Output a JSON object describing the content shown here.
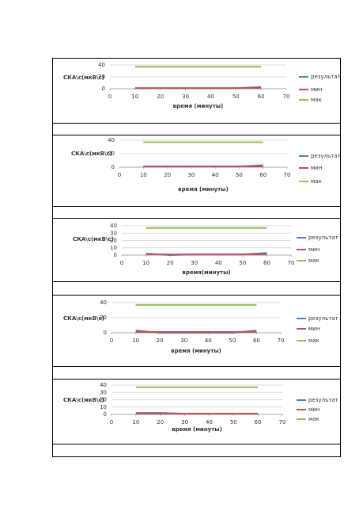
{
  "chart_data": [
    {
      "type": "line",
      "y_label": "СКА\\с(мкВ\\с)",
      "x_label": "время (минуты)",
      "x": [
        10,
        20,
        30,
        40,
        50,
        60
      ],
      "xlim": [
        0,
        70
      ],
      "xticks": [
        0,
        10,
        20,
        30,
        40,
        50,
        60,
        70
      ],
      "ylim": [
        0,
        40
      ],
      "yticks": [
        0,
        20,
        40
      ],
      "grid": true,
      "series": [
        {
          "name": "результат",
          "color": "#4f81bd",
          "values": [
            1,
            1,
            1,
            1,
            1,
            3
          ]
        },
        {
          "name": "мин",
          "color": "#c0504d",
          "values": [
            1,
            1,
            1,
            1,
            1,
            1
          ]
        },
        {
          "name": "мак",
          "color": "#9bbb59",
          "values": [
            37,
            37,
            37,
            37,
            37,
            37
          ]
        }
      ]
    },
    {
      "type": "line",
      "y_label": "СКА\\с(мкВ\\с)",
      "x_label": "время (минуты)",
      "x": [
        10,
        20,
        30,
        40,
        50,
        60
      ],
      "xlim": [
        0,
        70
      ],
      "xticks": [
        0,
        10,
        20,
        30,
        40,
        50,
        60,
        70
      ],
      "ylim": [
        0,
        40
      ],
      "yticks": [
        0,
        20,
        40
      ],
      "grid": true,
      "series": [
        {
          "name": "результат",
          "color": "#4f81bd",
          "values": [
            1,
            1,
            1,
            1,
            1,
            3
          ]
        },
        {
          "name": "мин",
          "color": "#c0504d",
          "values": [
            1,
            1,
            1,
            1,
            1,
            1
          ]
        },
        {
          "name": "мак",
          "color": "#9bbb59",
          "values": [
            37,
            37,
            37,
            37,
            37,
            37
          ]
        }
      ]
    },
    {
      "type": "line",
      "y_label": "СКА\\с(мкВ\\с)",
      "x_label": "время(минуты)",
      "x": [
        10,
        20,
        30,
        40,
        50,
        60
      ],
      "xlim": [
        0,
        70
      ],
      "xticks": [
        0,
        10,
        20,
        30,
        40,
        50,
        60,
        70
      ],
      "ylim": [
        0,
        40
      ],
      "yticks": [
        0,
        10,
        20,
        30,
        40
      ],
      "grid": true,
      "series": [
        {
          "name": "результат",
          "color": "#4f81bd",
          "values": [
            2,
            0,
            1,
            1,
            1,
            3
          ]
        },
        {
          "name": "мин",
          "color": "#c0504d",
          "values": [
            1,
            1,
            1,
            1,
            1,
            1
          ]
        },
        {
          "name": "мак",
          "color": "#9bbb59",
          "values": [
            37,
            37,
            37,
            37,
            37,
            37
          ]
        }
      ]
    },
    {
      "type": "line",
      "y_label": "СКА\\с(мкВ\\с)",
      "x_label": "время (минуты)",
      "x": [
        10,
        20,
        30,
        40,
        50,
        60
      ],
      "xlim": [
        0,
        70
      ],
      "xticks": [
        0,
        10,
        20,
        30,
        40,
        50,
        60,
        70
      ],
      "ylim": [
        0,
        40
      ],
      "yticks": [
        0,
        20,
        40
      ],
      "grid": true,
      "series": [
        {
          "name": "результат",
          "color": "#4f81bd",
          "values": [
            3,
            0,
            0,
            0,
            0,
            3
          ]
        },
        {
          "name": "мин",
          "color": "#c0504d",
          "values": [
            1,
            1,
            1,
            1,
            1,
            1
          ]
        },
        {
          "name": "мак",
          "color": "#9bbb59",
          "values": [
            37,
            37,
            37,
            37,
            37,
            37
          ]
        }
      ]
    },
    {
      "type": "line",
      "y_label": "СКА\\с(мкВ\\с)",
      "x_label": "время (минуты)",
      "x": [
        10,
        20,
        30,
        40,
        50,
        60
      ],
      "xlim": [
        0,
        70
      ],
      "xticks": [
        0,
        10,
        20,
        30,
        40,
        50,
        60,
        70
      ],
      "ylim": [
        0,
        40
      ],
      "yticks": [
        0,
        10,
        20,
        30,
        40
      ],
      "grid": true,
      "series": [
        {
          "name": "результат",
          "color": "#4f81bd",
          "values": [
            2,
            2,
            1,
            1,
            1,
            1
          ]
        },
        {
          "name": "мин",
          "color": "#c0504d",
          "values": [
            1,
            1,
            1,
            1,
            1,
            1
          ]
        },
        {
          "name": "мак",
          "color": "#9bbb59",
          "values": [
            37,
            37,
            37,
            37,
            37,
            37
          ]
        }
      ]
    }
  ]
}
